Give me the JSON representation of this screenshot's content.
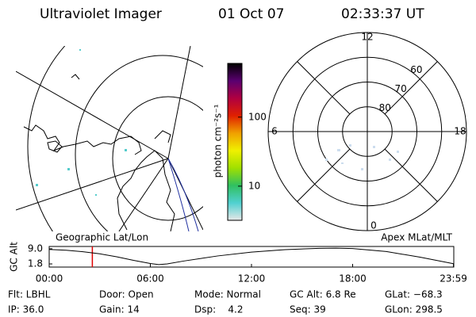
{
  "header": {
    "title": "Ultraviolet Imager",
    "date": "01 Oct 07",
    "time": "02:33:37 UT"
  },
  "colorbar": {
    "label": "photon cm⁻²s⁻¹",
    "scale": "log",
    "lim": [
      3.2,
      600
    ],
    "ticks": [
      10,
      100
    ],
    "colors": [
      "#e8e8e8",
      "#50d0d0",
      "#30c060",
      "#a0e000",
      "#f0f000",
      "#f0a000",
      "#e02000",
      "#b00040",
      "#5a0070",
      "#000000"
    ]
  },
  "polar": {
    "mlt": [
      12,
      6,
      0,
      18
    ],
    "lat_rings": [
      80,
      70,
      60
    ],
    "min_lat": 50
  },
  "chart_data": {
    "type": "line",
    "title": "Geographic Lat/Lon",
    "subtitle": "Apex MLat/MLT",
    "ylabel": "GC Alt",
    "x": [
      0,
      1,
      2,
      3,
      4,
      5,
      6,
      6.5,
      7,
      8,
      10,
      12,
      14,
      16,
      17,
      18,
      20,
      22,
      23.98
    ],
    "values": [
      8.7,
      8.3,
      7.6,
      6.6,
      5.2,
      3.5,
      2.0,
      1.5,
      1.8,
      3.2,
      5.6,
      7.4,
      8.6,
      9.2,
      9.3,
      9.1,
      7.7,
      5.0,
      1.9
    ],
    "color": "#000000",
    "xlim": [
      0,
      24
    ],
    "ylim": [
      0.3,
      10.1
    ],
    "xticks": [
      {
        "value": 0,
        "label": "00:00"
      },
      {
        "value": 6,
        "label": "06:00"
      },
      {
        "value": 12,
        "label": "12:00"
      },
      {
        "value": 18,
        "label": "18:00"
      },
      {
        "value": 23.98,
        "label": "23:59"
      }
    ],
    "yticks": [
      {
        "value": 9,
        "label": "9.0"
      },
      1.8
    ],
    "marker": {
      "x": 2.56,
      "color": "#e00000"
    }
  },
  "footer": [
    [
      "Flt: LBHL",
      "Door: Open",
      "Mode: Normal",
      "GC Alt: 6.8 Re",
      "GLat: −68.3"
    ],
    [
      "IP: 36.0",
      "Gain: 14",
      "Dsp:    4.2",
      "Seq: 39",
      "GLon: 298.5"
    ]
  ]
}
